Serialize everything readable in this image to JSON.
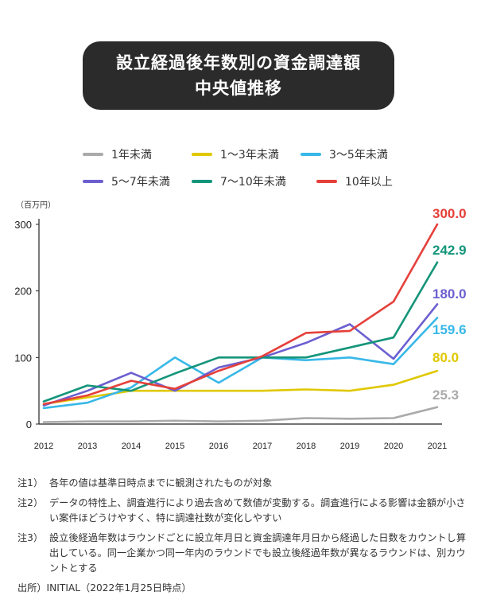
{
  "title": {
    "line1": "設立経過後年数別の資金調達額",
    "line2": "中央値推移"
  },
  "unit": "（百万円）",
  "chart_data": {
    "type": "line",
    "title": "設立経過後年数別の資金調達額 中央値推移",
    "xlabel": "",
    "ylabel": "（百万円）",
    "x": [
      "2012",
      "2013",
      "2014",
      "2015",
      "2016",
      "2017",
      "2018",
      "2019",
      "2020",
      "2021"
    ],
    "ylim": [
      0,
      300
    ],
    "yticks": [
      0,
      100,
      200,
      300
    ],
    "grid": false,
    "legend_position": "top",
    "series": [
      {
        "name": "1年未満",
        "color": "#aaaaaa",
        "values": [
          3,
          4,
          4,
          5,
          4,
          5,
          9,
          8,
          9,
          25.3
        ],
        "end_label": "25.3"
      },
      {
        "name": "1〜3年未満",
        "color": "#e0c800",
        "values": [
          30,
          40,
          50,
          50,
          50,
          50,
          52,
          50,
          59,
          80.0
        ],
        "end_label": "80.0"
      },
      {
        "name": "3〜5年未満",
        "color": "#38b8e8",
        "values": [
          24,
          32,
          55,
          100,
          62,
          100,
          96,
          100,
          90,
          159.6
        ],
        "end_label": "159.6"
      },
      {
        "name": "5〜7年未満",
        "color": "#6b5fd0",
        "values": [
          28,
          50,
          77,
          50,
          85,
          100,
          122,
          150,
          98,
          180.0
        ],
        "end_label": "180.0"
      },
      {
        "name": "7〜10年未満",
        "color": "#14957a",
        "values": [
          34,
          58,
          50,
          76,
          100,
          100,
          100,
          115,
          130,
          242.9
        ],
        "end_label": "242.9"
      },
      {
        "name": "10年以上",
        "color": "#e5403a",
        "values": [
          30,
          43,
          65,
          53,
          80,
          102,
          137,
          140,
          184,
          300.0
        ],
        "end_label": "300.0"
      }
    ]
  },
  "notes": [
    {
      "tag": "注1）",
      "text": "各年の値は基準日時点までに観測されたものが対象"
    },
    {
      "tag": "注2）",
      "text": "データの特性上、調査進行により過去含めて数値が変動する。調査進行による影響は金額が小さい案件ほどうけやすく、特に調達社数が変化しやすい"
    },
    {
      "tag": "注3）",
      "text": "設立後経過年数はラウンドごとに設立年月日と資金調達年月日から経過した日数をカウントし算出している。同一企業かつ同一年内のラウンドでも設立後経過年数が異なるラウンドは、別カウントとする"
    }
  ],
  "source": "出所）INITIAL（2022年1月25日時点）"
}
